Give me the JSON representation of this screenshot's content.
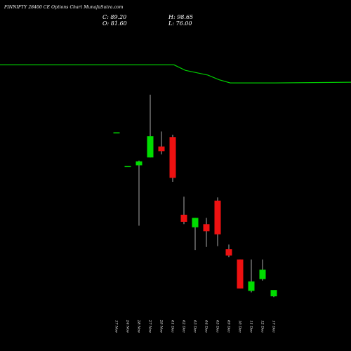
{
  "title": "FINNIFTY 28400 CE Options Chart MunafaSutra.com",
  "ohlc": {
    "close": "C: 89.20",
    "open": "O: 81.60",
    "high": "H: 98.65",
    "low": "L: 76.00"
  },
  "colors": {
    "background": "#000000",
    "up": "#00dd00",
    "down": "#ee1111",
    "wick": "#aaaaaa",
    "trend_line": "#00cc00",
    "text": "#ffffff"
  },
  "chart_data": {
    "type": "candlestick",
    "title": "FINNIFTY 28400 CE Options Chart MunafaSutra.com",
    "x_axis": {
      "tick_labels": [
        "17 Nov",
        "24 Nov",
        "28 Nov",
        "27 Nov",
        "29 Nov",
        "01 Dec",
        "02 Dec",
        "03 Dec",
        "04 Dec",
        "05 Dec",
        "09 Dec",
        "10 Dec",
        "11 Dec",
        "12 Dec",
        "17 Dec"
      ],
      "label_orientation": "vertical"
    },
    "y_axis": {
      "visible": false,
      "range_estimated": [
        74,
        108
      ]
    },
    "grid": false,
    "candles": [
      {
        "date": "17 Nov",
        "open": 96.5,
        "high": 96.5,
        "low": 96.5,
        "close": 96.5
      },
      {
        "date": "24 Nov",
        "open": 92.2,
        "high": 92.2,
        "low": 92.2,
        "close": 92.2
      },
      {
        "date": "28 Nov",
        "open": 92.3,
        "high": 92.9,
        "low": 84.6,
        "close": 92.8
      },
      {
        "date": "27 Nov",
        "open": 93.3,
        "high": 101.3,
        "low": 93.3,
        "close": 96.0
      },
      {
        "date": "29 Nov",
        "open": 94.7,
        "high": 96.6,
        "low": 93.7,
        "close": 94.1
      },
      {
        "date": "01 Dec",
        "open": 95.9,
        "high": 96.2,
        "low": 90.2,
        "close": 90.7
      },
      {
        "date": "02 Dec",
        "open": 86.0,
        "high": 88.3,
        "low": 84.8,
        "close": 85.1
      },
      {
        "date": "03 Dec",
        "open": 84.4,
        "high": 85.6,
        "low": 81.5,
        "close": 85.6
      },
      {
        "date": "04 Dec",
        "open": 84.8,
        "high": 85.6,
        "low": 81.9,
        "close": 83.9
      },
      {
        "date": "05 Dec",
        "open": 87.8,
        "high": 88.2,
        "low": 82.0,
        "close": 83.5
      },
      {
        "date": "09 Dec",
        "open": 81.6,
        "high": 82.2,
        "low": 80.6,
        "close": 80.8
      },
      {
        "date": "10 Dec",
        "open": 80.3,
        "high": 80.3,
        "low": 76.6,
        "close": 76.6
      },
      {
        "date": "11 Dec",
        "open": 76.3,
        "high": 80.3,
        "low": 76.1,
        "close": 77.5
      },
      {
        "date": "12 Dec",
        "open": 77.8,
        "high": 80.3,
        "low": 77.6,
        "close": 79.0
      },
      {
        "date": "17 Dec",
        "open": 75.6,
        "high": 76.3,
        "low": 75.5,
        "close": 76.4
      }
    ],
    "overlay_line": {
      "values": [
        105.1,
        105.1,
        105.1,
        105.1,
        105.1,
        105.1,
        104.4,
        104.1,
        103.8,
        103.2,
        102.8,
        102.8,
        102.8,
        102.8,
        102.8
      ]
    }
  }
}
